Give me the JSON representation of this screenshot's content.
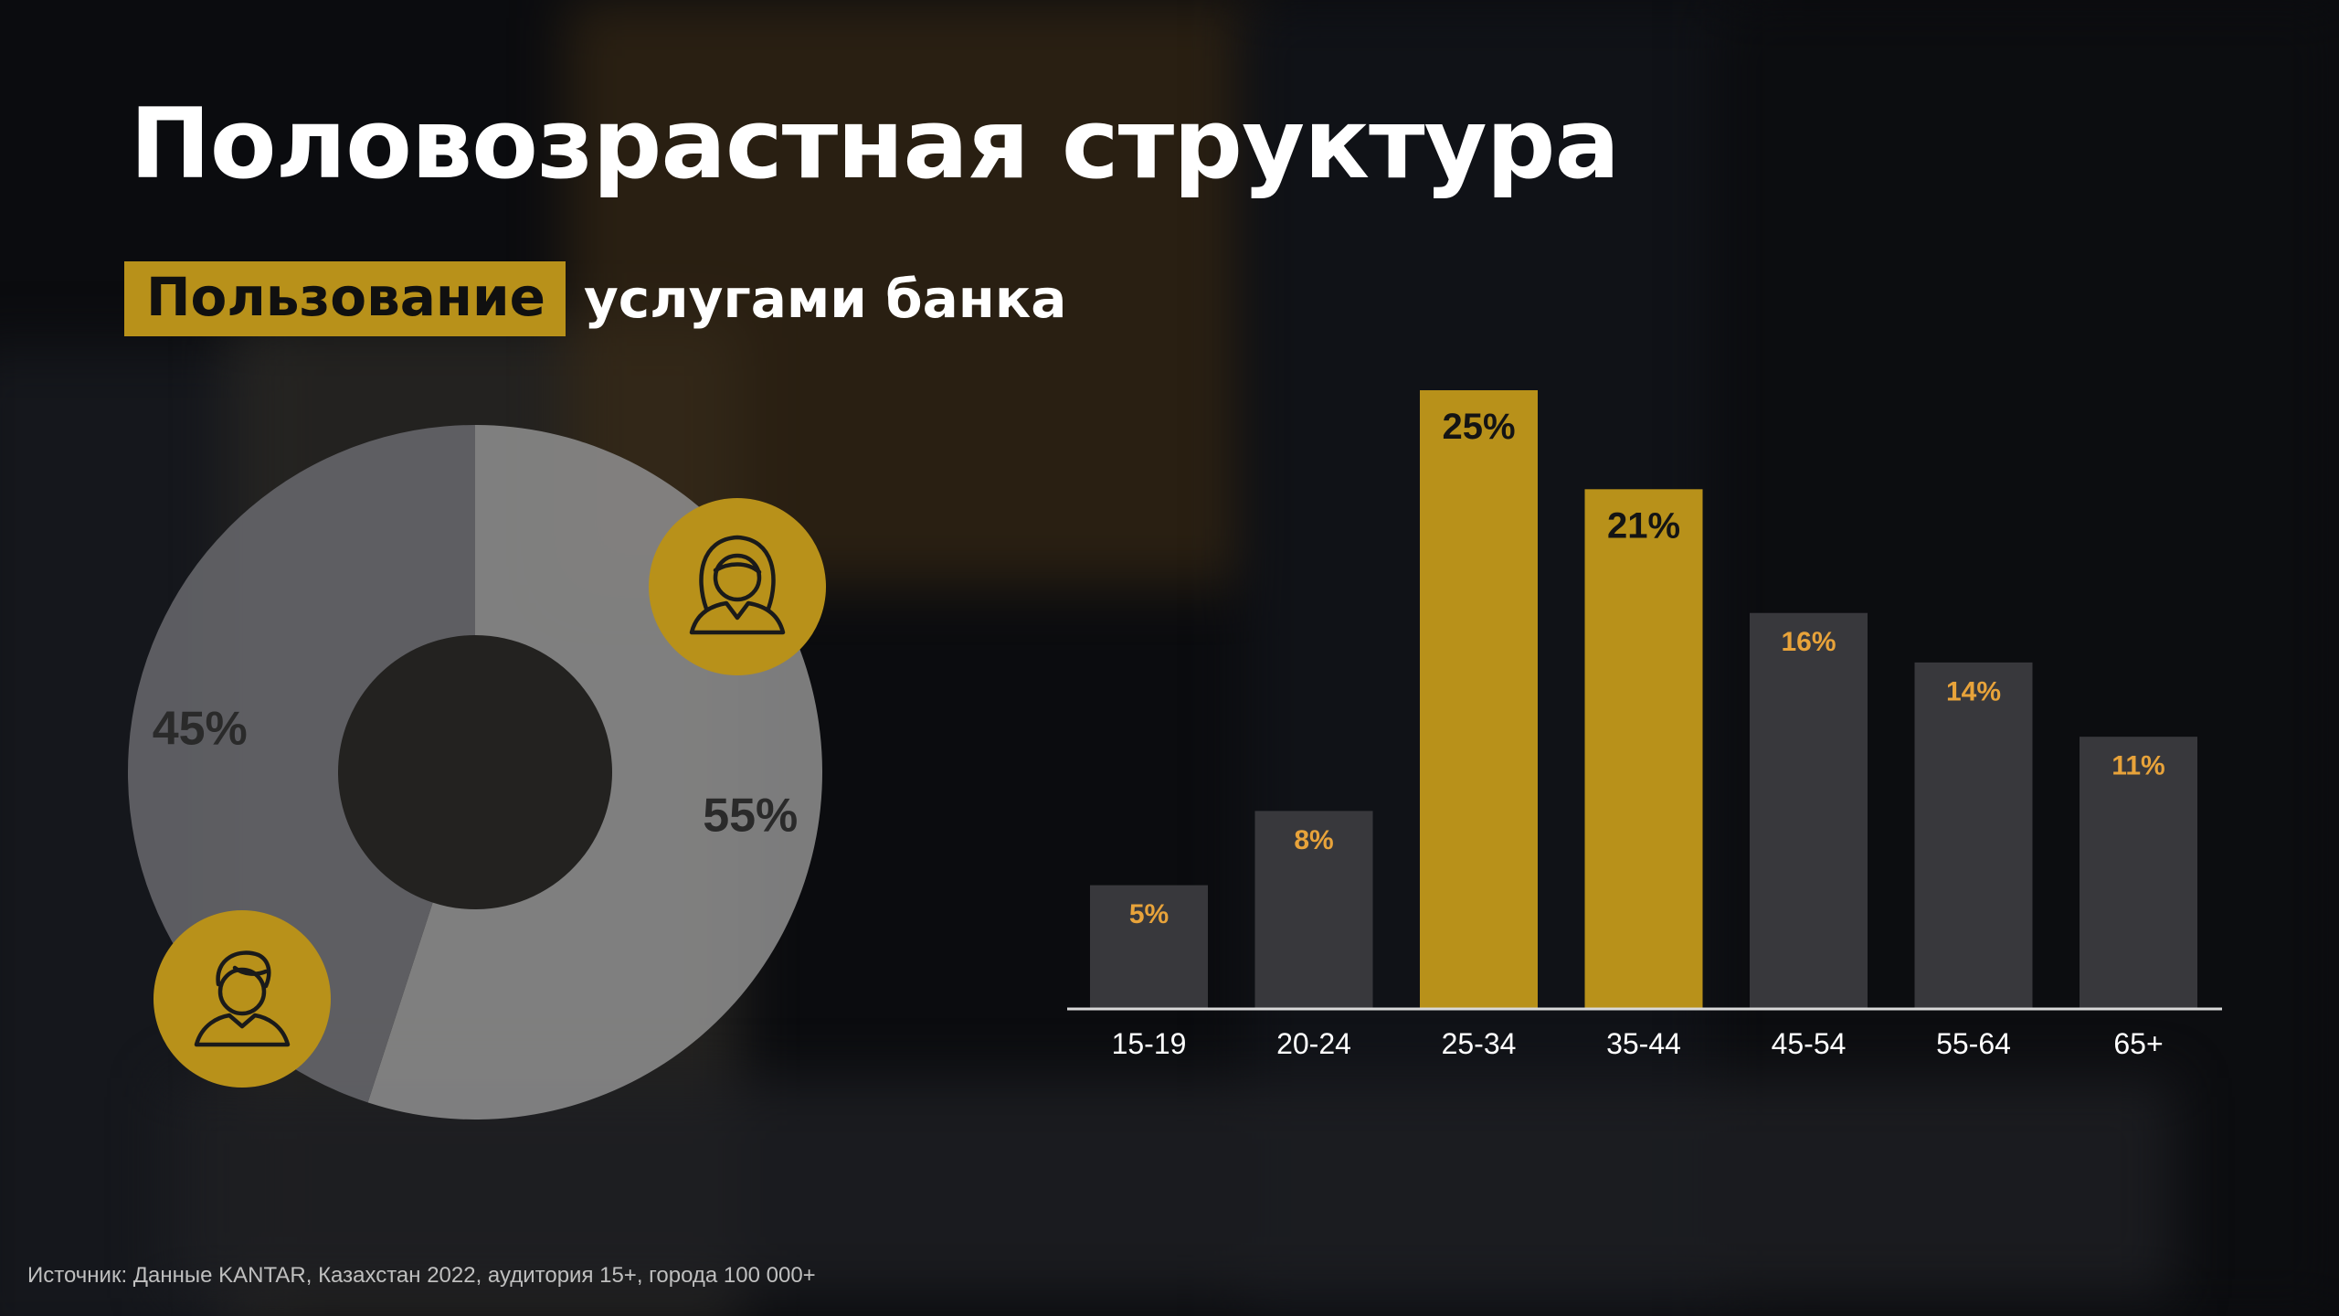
{
  "slide": {
    "title": "Половозрастная структура",
    "subtitle_highlight": "Пользование",
    "subtitle_rest": "услугами банка",
    "source": "Источник: Данные KANTAR, Казахстан 2022, аудитория 15+, города 100 000+"
  },
  "colors": {
    "accent": "#b8911a",
    "bar_dark": "#38383c",
    "bar_label_orange": "#e8a33a",
    "donut_light": "#8c8c8c",
    "donut_dark": "#66676b"
  },
  "chart_data": [
    {
      "type": "pie",
      "variant": "donut",
      "slices": [
        {
          "value": 55,
          "label": "55%",
          "icon": "woman-icon"
        },
        {
          "value": 45,
          "label": "45%",
          "icon": "man-icon"
        }
      ]
    },
    {
      "type": "bar",
      "categories": [
        "15-19",
        "20-24",
        "25-34",
        "35-44",
        "45-54",
        "55-64",
        "65+"
      ],
      "values": [
        5,
        8,
        25,
        21,
        16,
        14,
        11
      ],
      "labels": [
        "5%",
        "8%",
        "25%",
        "21%",
        "16%",
        "14%",
        "11%"
      ],
      "highlighted": [
        "25-34",
        "35-44"
      ],
      "ylim": [
        0,
        25
      ]
    }
  ]
}
